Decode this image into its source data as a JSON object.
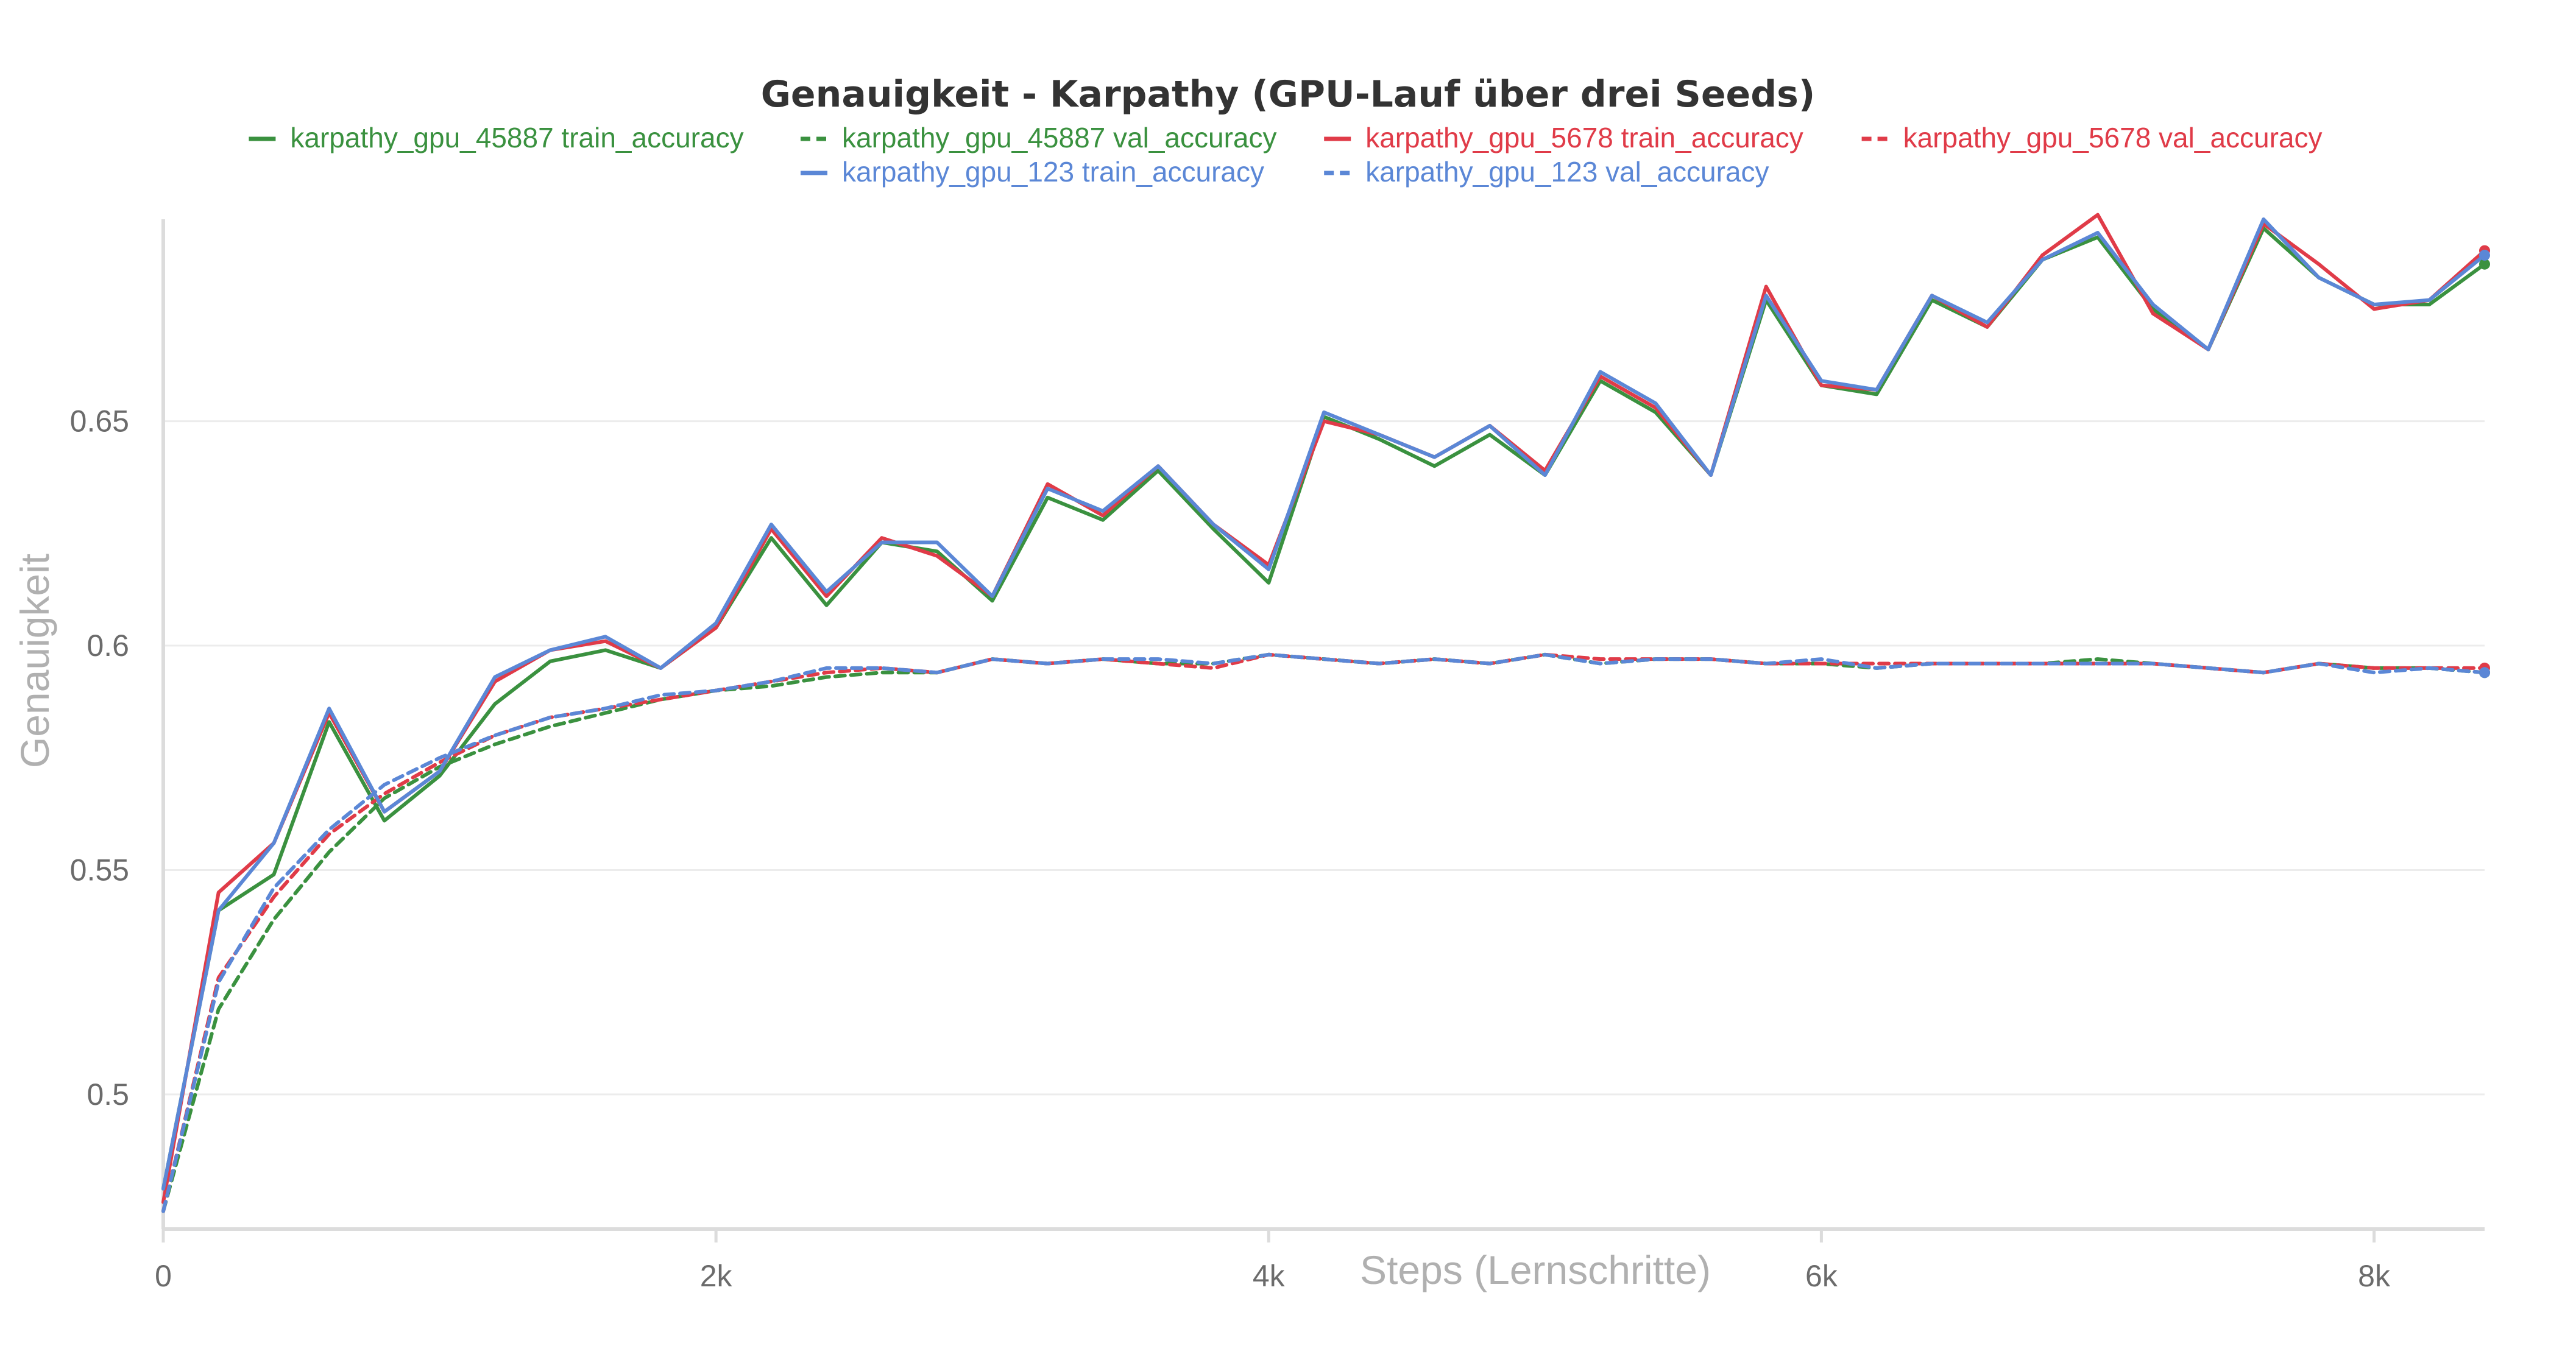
{
  "chart_data": {
    "type": "line",
    "title": "Genauigkeit - Karpathy (GPU-Lauf über drei Seeds)",
    "xlabel": "Steps (Lernschritte)",
    "ylabel": "Genauigkeit",
    "xlim": [
      0,
      8400
    ],
    "ylim": [
      0.47,
      0.695
    ],
    "grid": true,
    "legend_position": "top",
    "x_ticks": [
      {
        "value": 0,
        "label": "0"
      },
      {
        "value": 2000,
        "label": "2k"
      },
      {
        "value": 4000,
        "label": "4k"
      },
      {
        "value": 6000,
        "label": "6k"
      },
      {
        "value": 8000,
        "label": "8k"
      }
    ],
    "y_ticks": [
      {
        "value": 0.5,
        "label": "0.5"
      },
      {
        "value": 0.55,
        "label": "0.55"
      },
      {
        "value": 0.6,
        "label": "0.6"
      },
      {
        "value": 0.65,
        "label": "0.65"
      }
    ],
    "x": [
      0,
      200,
      400,
      600,
      800,
      1000,
      1200,
      1400,
      1600,
      1800,
      2000,
      2200,
      2400,
      2600,
      2800,
      3000,
      3200,
      3400,
      3600,
      3800,
      4000,
      4200,
      4400,
      4600,
      4800,
      5000,
      5200,
      5400,
      5600,
      5800,
      6000,
      6200,
      6400,
      6600,
      6800,
      7000,
      7200,
      7400,
      7600,
      7800,
      8000,
      8200,
      8400
    ],
    "series": [
      {
        "name": "karpathy_gpu_45887 train_accuracy",
        "color": "#3a913f",
        "dash": "solid",
        "values": [
          0.479,
          0.541,
          0.549,
          0.583,
          0.561,
          0.571,
          0.587,
          0.5965,
          0.599,
          0.595,
          0.604,
          0.624,
          0.609,
          0.623,
          0.621,
          0.61,
          0.633,
          0.628,
          0.639,
          0.626,
          0.614,
          0.651,
          0.646,
          0.64,
          0.647,
          0.638,
          0.659,
          0.652,
          0.638,
          0.677,
          0.658,
          0.656,
          0.677,
          0.671,
          0.686,
          0.691,
          0.675,
          0.666,
          0.693,
          0.682,
          0.676,
          0.676,
          0.685
        ]
      },
      {
        "name": "karpathy_gpu_45887 val_accuracy",
        "color": "#3a913f",
        "dash": "dashed",
        "values": [
          0.474,
          0.519,
          0.539,
          0.554,
          0.566,
          0.573,
          0.578,
          0.582,
          0.585,
          0.588,
          0.59,
          0.591,
          0.593,
          0.594,
          0.594,
          0.597,
          0.596,
          0.597,
          0.596,
          0.596,
          0.598,
          0.597,
          0.596,
          0.597,
          0.596,
          0.598,
          0.596,
          0.597,
          0.597,
          0.596,
          0.596,
          0.595,
          0.596,
          0.596,
          0.596,
          0.597,
          0.596,
          0.595,
          0.594,
          0.596,
          0.595,
          0.595,
          0.594
        ]
      },
      {
        "name": "karpathy_gpu_5678 train_accuracy",
        "color": "#e03b48",
        "dash": "solid",
        "values": [
          0.476,
          0.545,
          0.556,
          0.585,
          0.563,
          0.572,
          0.592,
          0.599,
          0.601,
          0.595,
          0.604,
          0.626,
          0.611,
          0.624,
          0.62,
          0.611,
          0.636,
          0.629,
          0.64,
          0.627,
          0.618,
          0.65,
          0.647,
          0.642,
          0.649,
          0.639,
          0.66,
          0.653,
          0.638,
          0.68,
          0.658,
          0.657,
          0.678,
          0.671,
          0.687,
          0.696,
          0.674,
          0.666,
          0.694,
          0.685,
          0.675,
          0.677,
          0.688
        ]
      },
      {
        "name": "karpathy_gpu_5678 val_accuracy",
        "color": "#e03b48",
        "dash": "dashed",
        "values": [
          0.474,
          0.526,
          0.544,
          0.558,
          0.567,
          0.574,
          0.58,
          0.584,
          0.586,
          0.588,
          0.59,
          0.592,
          0.594,
          0.595,
          0.594,
          0.597,
          0.596,
          0.597,
          0.596,
          0.595,
          0.598,
          0.597,
          0.596,
          0.597,
          0.596,
          0.598,
          0.597,
          0.597,
          0.597,
          0.596,
          0.596,
          0.596,
          0.596,
          0.596,
          0.596,
          0.596,
          0.596,
          0.595,
          0.594,
          0.596,
          0.595,
          0.595,
          0.595
        ]
      },
      {
        "name": "karpathy_gpu_123 train_accuracy",
        "color": "#5b87d6",
        "dash": "solid",
        "values": [
          0.479,
          0.541,
          0.556,
          0.586,
          0.563,
          0.572,
          0.593,
          0.599,
          0.602,
          0.595,
          0.605,
          0.627,
          0.612,
          0.623,
          0.623,
          0.611,
          0.635,
          0.63,
          0.64,
          0.627,
          0.617,
          0.652,
          0.647,
          0.642,
          0.649,
          0.638,
          0.661,
          0.654,
          0.638,
          0.678,
          0.659,
          0.657,
          0.678,
          0.672,
          0.686,
          0.692,
          0.676,
          0.666,
          0.695,
          0.682,
          0.676,
          0.677,
          0.687
        ]
      },
      {
        "name": "karpathy_gpu_123 val_accuracy",
        "color": "#5b87d6",
        "dash": "dashed",
        "values": [
          0.474,
          0.525,
          0.546,
          0.559,
          0.569,
          0.575,
          0.58,
          0.584,
          0.586,
          0.589,
          0.59,
          0.592,
          0.595,
          0.595,
          0.594,
          0.597,
          0.596,
          0.597,
          0.597,
          0.596,
          0.598,
          0.597,
          0.596,
          0.597,
          0.596,
          0.598,
          0.596,
          0.597,
          0.597,
          0.596,
          0.597,
          0.595,
          0.596,
          0.596,
          0.596,
          0.596,
          0.596,
          0.595,
          0.594,
          0.596,
          0.594,
          0.595,
          0.594
        ]
      }
    ]
  }
}
